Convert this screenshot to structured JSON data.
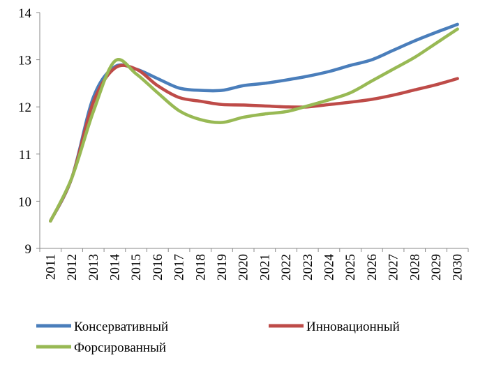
{
  "chart_data": {
    "type": "line",
    "categories": [
      "2011",
      "2012",
      "2013",
      "2014",
      "2015",
      "2016",
      "2017",
      "2018",
      "2019",
      "2020",
      "2021",
      "2022",
      "2023",
      "2024",
      "2025",
      "2026",
      "2027",
      "2028",
      "2029",
      "2030"
    ],
    "series": [
      {
        "name": "Консервативный",
        "color": "#4a7ebb",
        "values": [
          9.58,
          10.5,
          12.2,
          12.85,
          12.8,
          12.6,
          12.4,
          12.35,
          12.35,
          12.45,
          12.5,
          12.57,
          12.65,
          12.75,
          12.88,
          13.0,
          13.2,
          13.4,
          13.58,
          13.75
        ]
      },
      {
        "name": "Инновационный",
        "color": "#be4b48",
        "values": [
          9.58,
          10.5,
          12.1,
          12.82,
          12.8,
          12.45,
          12.2,
          12.12,
          12.05,
          12.04,
          12.02,
          12.0,
          12.0,
          12.05,
          12.1,
          12.16,
          12.25,
          12.36,
          12.47,
          12.6
        ]
      },
      {
        "name": "Форсированный",
        "color": "#98b954",
        "values": [
          9.58,
          10.5,
          11.9,
          12.97,
          12.7,
          12.3,
          11.92,
          11.73,
          11.67,
          11.78,
          11.85,
          11.9,
          12.02,
          12.15,
          12.3,
          12.55,
          12.8,
          13.05,
          13.35,
          13.65
        ]
      }
    ],
    "ylim": [
      9,
      14
    ],
    "yticks": [
      9,
      10,
      11,
      12,
      13,
      14
    ],
    "grid": false
  }
}
